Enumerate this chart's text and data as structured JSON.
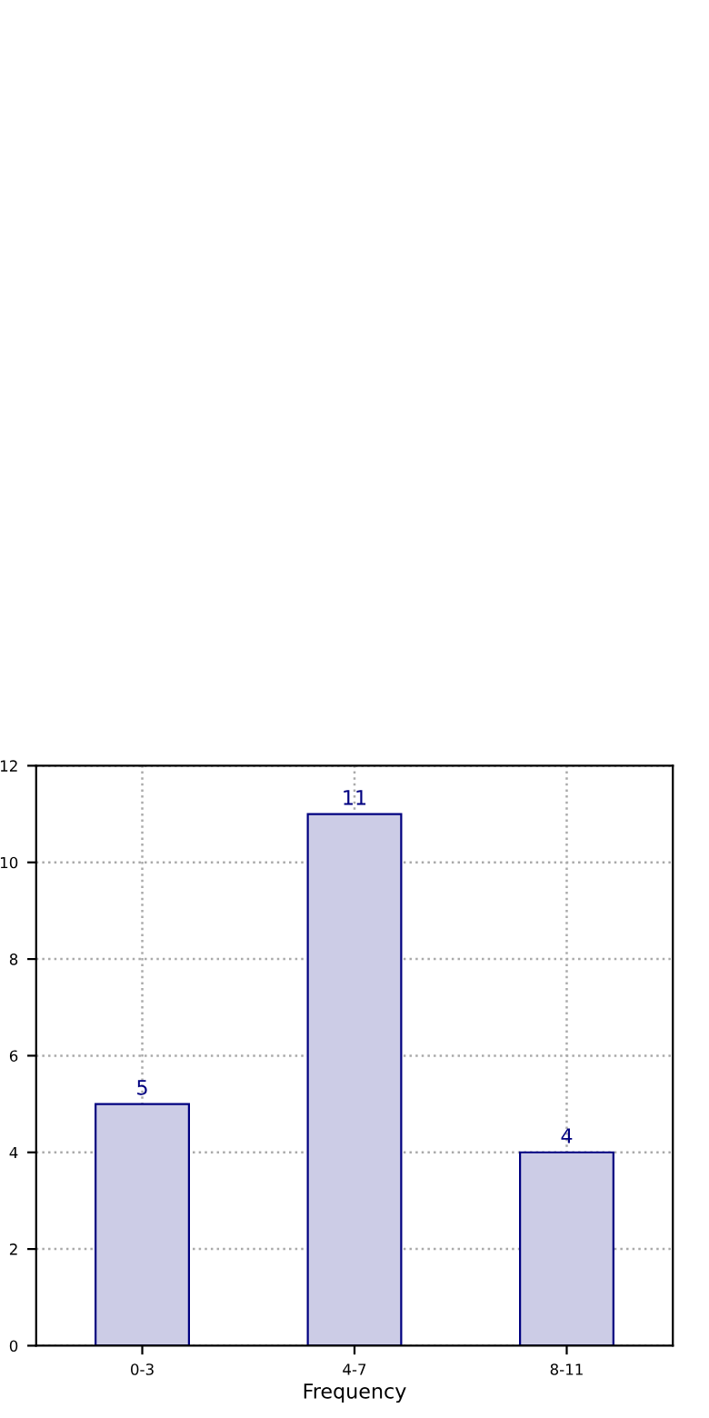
{
  "chart_data": {
    "type": "bar",
    "xlabel": "Frequency",
    "categories": [
      "0-3",
      "4-7",
      "8-11"
    ],
    "values": [
      5,
      11,
      4
    ],
    "color": "#cccce6",
    "ylim": [
      0,
      12
    ],
    "yticks": [
      0,
      2,
      4,
      6,
      8,
      10,
      12
    ],
    "grid": true,
    "data_labels": true
  }
}
